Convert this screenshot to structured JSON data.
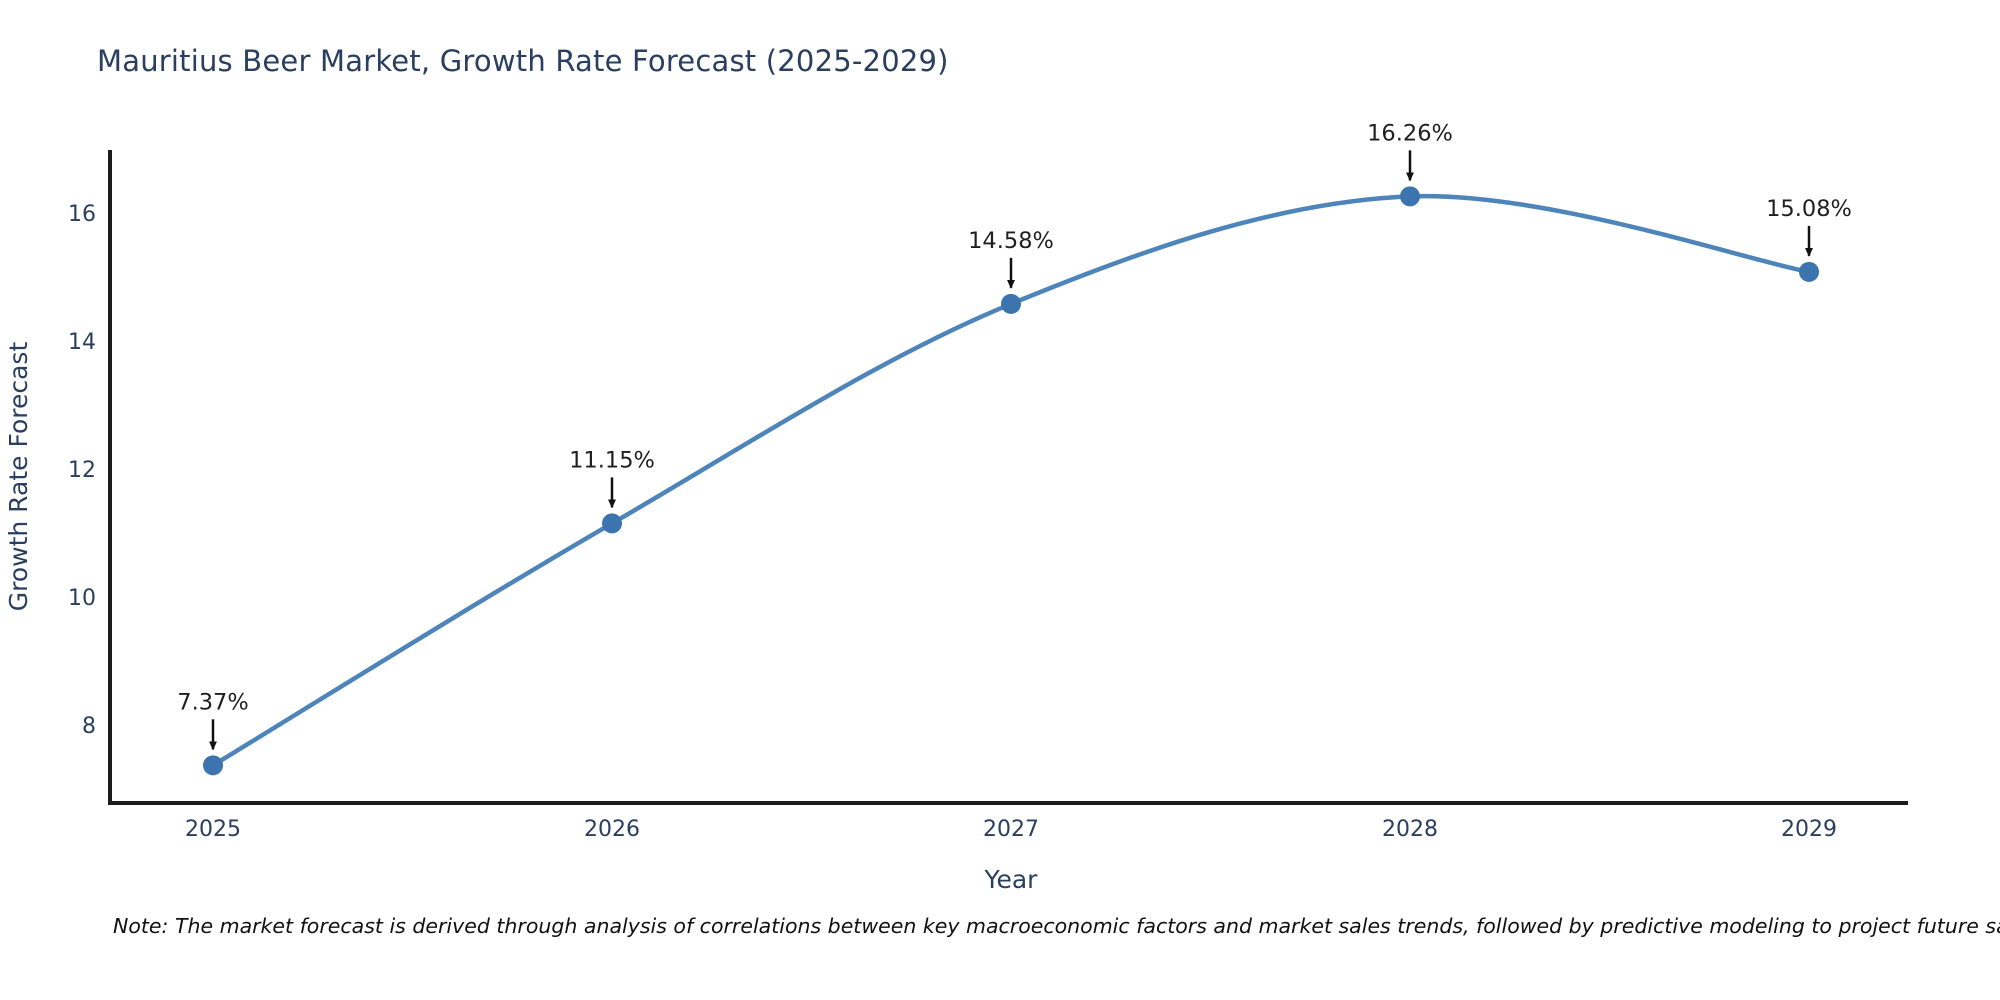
{
  "chart_data": {
    "type": "line",
    "title": "Mauritius Beer Market, Growth Rate Forecast (2025-2029)",
    "xlabel": "Year",
    "ylabel": "Growth Rate Forecast",
    "x": [
      "2025",
      "2026",
      "2027",
      "2028",
      "2029"
    ],
    "values": [
      7.37,
      11.15,
      14.58,
      16.26,
      15.08
    ],
    "point_labels": [
      "7.37%",
      "11.15%",
      "14.58%",
      "16.26%",
      "15.08%"
    ],
    "yticks": [
      8,
      10,
      12,
      14,
      16
    ],
    "ylim": [
      6.8,
      17.0
    ],
    "grid": false,
    "legend": "none",
    "line_shape": "spline",
    "colors": {
      "line": "#4d84ba",
      "marker": "#3c74ae",
      "axis": "#1c1c1c",
      "axis_text": "#2a3f5f",
      "annotation_text": "#1f1f1f",
      "arrow": "#111111",
      "background": "#ffffff"
    }
  },
  "note": "Note: The market forecast is derived through analysis of correlations between key macroeconomic factors and market sales trends, followed by predictive modeling to project future sales"
}
